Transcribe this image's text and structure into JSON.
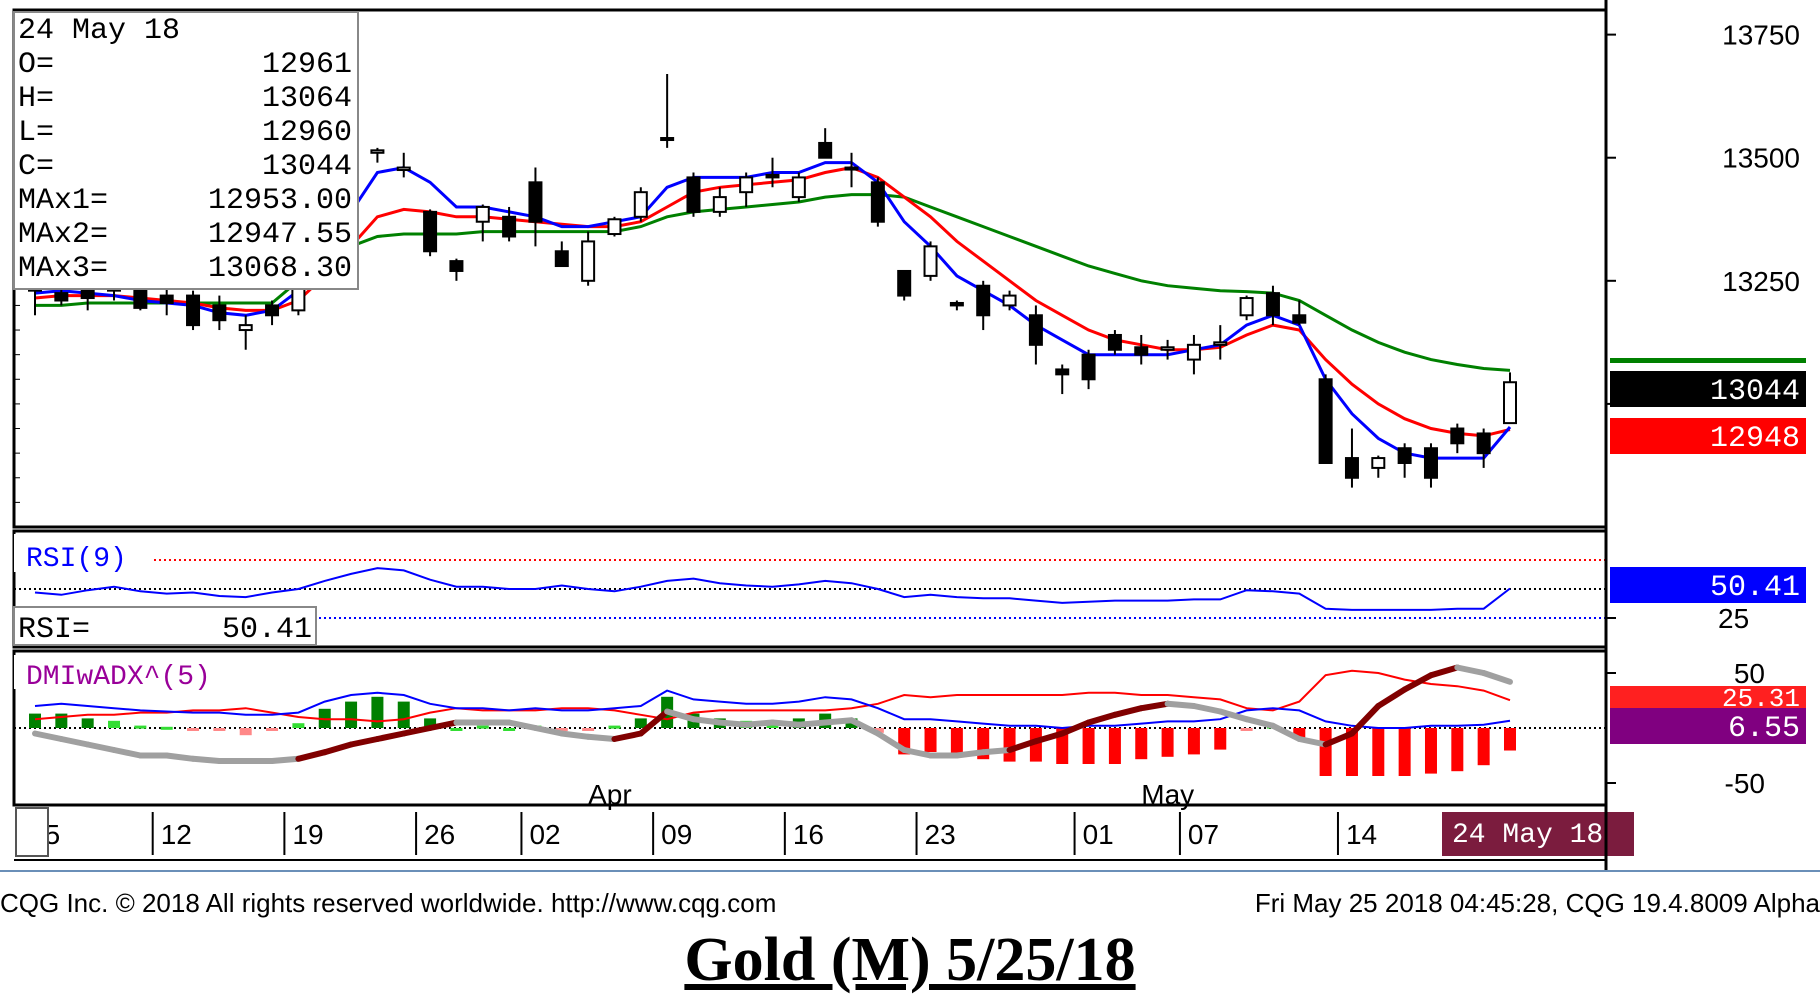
{
  "ohlc_panel": {
    "date": "24 May 18",
    "rows": [
      {
        "label": "O=",
        "value": "12961"
      },
      {
        "label": "H=",
        "value": "13064"
      },
      {
        "label": "L=",
        "value": "12960"
      },
      {
        "label": "C=",
        "value": "13044"
      },
      {
        "label": "MAx1=",
        "value": "12953.00"
      },
      {
        "label": "MAx2=",
        "value": "12947.55"
      },
      {
        "label": "MAx3=",
        "value": "13068.30"
      }
    ]
  },
  "rsi_panel": {
    "title": "RSI(9)",
    "readout_label": "RSI=",
    "readout_value": "50.41"
  },
  "dmi_panel": {
    "title": "DMIwADX^(5)"
  },
  "price_badges": [
    {
      "text": "13044",
      "bg": "#000000",
      "fg": "#ffffff"
    },
    {
      "text": "12948",
      "bg": "#ff0000",
      "fg": "#ffffff"
    }
  ],
  "rsi_badge": {
    "text": "50.41",
    "bg": "#0000ff",
    "fg": "#ffffff"
  },
  "dmi_badges": [
    {
      "text": "25.31",
      "bg": "#ff2020",
      "fg": "#ffffff"
    },
    {
      "text": "6.55",
      "bg": "#800080",
      "fg": "#ffffff"
    }
  ],
  "date_badge": {
    "text": "24 May 18",
    "bg": "#7b1c3e",
    "fg": "#ffffff"
  },
  "footer": {
    "left": "CQG Inc. © 2018 All rights reserved worldwide. http://www.cqg.com",
    "right": "Fri May 25 2018 04:45:28, CQG 19.4.8009 Alpha"
  },
  "caption": "Gold (M) 5/25/18",
  "colors": {
    "ma1": "#0000ff",
    "ma2": "#ff0000",
    "ma3": "#008000",
    "adx": "#a0a0a0",
    "adx_rising": "#800000",
    "adx_green": "#008000",
    "dmi_plus": "#0000ff",
    "dmi_minus": "#ff0000",
    "hist_pos": "#008000",
    "hist_pos_light": "#33dd33",
    "hist_neg": "#ff0000",
    "hist_neg_light": "#ff8888"
  },
  "chart_data": {
    "type": "candlestick",
    "price_axis": {
      "ticks": [
        13750,
        13500,
        13250
      ],
      "range": [
        12750,
        13800
      ]
    },
    "rsi_axis": {
      "ticks": [
        25
      ],
      "range": [
        0,
        100
      ],
      "levels": [
        75,
        50,
        25
      ]
    },
    "dmi_axis": {
      "ticks": [
        -50,
        50
      ],
      "range": [
        -70,
        70
      ]
    },
    "date_ticks": [
      "05",
      "12",
      "19",
      "26",
      "02",
      "09",
      "16",
      "23",
      "01",
      "07",
      "14"
    ],
    "date_tick_index": [
      0,
      5,
      10,
      15,
      19,
      24,
      29,
      34,
      40,
      44,
      50
    ],
    "month_labels": [
      {
        "text": "Apr",
        "index": 21
      },
      {
        "text": "May",
        "index": 42
      }
    ],
    "candles": [
      {
        "o": 13230,
        "h": 13260,
        "l": 13180,
        "c": 13235
      },
      {
        "o": 13225,
        "h": 13245,
        "l": 13200,
        "c": 13210
      },
      {
        "o": 13250,
        "h": 13270,
        "l": 13190,
        "c": 13215
      },
      {
        "o": 13230,
        "h": 13260,
        "l": 13210,
        "c": 13240
      },
      {
        "o": 13235,
        "h": 13255,
        "l": 13190,
        "c": 13195
      },
      {
        "o": 13220,
        "h": 13235,
        "l": 13180,
        "c": 13205
      },
      {
        "o": 13220,
        "h": 13230,
        "l": 13150,
        "c": 13160
      },
      {
        "o": 13200,
        "h": 13220,
        "l": 13150,
        "c": 13170
      },
      {
        "o": 13150,
        "h": 13180,
        "l": 13110,
        "c": 13160
      },
      {
        "o": 13200,
        "h": 13210,
        "l": 13160,
        "c": 13180
      },
      {
        "o": 13190,
        "h": 13300,
        "l": 13180,
        "c": 13290
      },
      {
        "o": 13295,
        "h": 13360,
        "l": 13290,
        "c": 13350
      },
      {
        "o": 13430,
        "h": 13475,
        "l": 13430,
        "c": 13470
      },
      {
        "o": 13510,
        "h": 13520,
        "l": 13490,
        "c": 13515
      },
      {
        "o": 13475,
        "h": 13510,
        "l": 13460,
        "c": 13480
      },
      {
        "o": 13390,
        "h": 13395,
        "l": 13300,
        "c": 13310
      },
      {
        "o": 13290,
        "h": 13295,
        "l": 13250,
        "c": 13270
      },
      {
        "o": 13370,
        "h": 13405,
        "l": 13330,
        "c": 13400
      },
      {
        "o": 13380,
        "h": 13400,
        "l": 13330,
        "c": 13340
      },
      {
        "o": 13450,
        "h": 13480,
        "l": 13320,
        "c": 13370
      },
      {
        "o": 13310,
        "h": 13330,
        "l": 13280,
        "c": 13280
      },
      {
        "o": 13250,
        "h": 13350,
        "l": 13240,
        "c": 13330
      },
      {
        "o": 13345,
        "h": 13380,
        "l": 13340,
        "c": 13375
      },
      {
        "o": 13380,
        "h": 13440,
        "l": 13370,
        "c": 13430
      },
      {
        "o": 13540,
        "h": 13670,
        "l": 13520,
        "c": 13540
      },
      {
        "o": 13460,
        "h": 13470,
        "l": 13380,
        "c": 13390
      },
      {
        "o": 13390,
        "h": 13440,
        "l": 13380,
        "c": 13420
      },
      {
        "o": 13430,
        "h": 13470,
        "l": 13400,
        "c": 13460
      },
      {
        "o": 13465,
        "h": 13500,
        "l": 13440,
        "c": 13460
      },
      {
        "o": 13420,
        "h": 13470,
        "l": 13410,
        "c": 13460
      },
      {
        "o": 13530,
        "h": 13560,
        "l": 13500,
        "c": 13500
      },
      {
        "o": 13480,
        "h": 13510,
        "l": 13440,
        "c": 13480
      },
      {
        "o": 13450,
        "h": 13460,
        "l": 13360,
        "c": 13370
      },
      {
        "o": 13270,
        "h": 13270,
        "l": 13210,
        "c": 13220
      },
      {
        "o": 13260,
        "h": 13330,
        "l": 13250,
        "c": 13320
      },
      {
        "o": 13205,
        "h": 13210,
        "l": 13190,
        "c": 13200
      },
      {
        "o": 13240,
        "h": 13250,
        "l": 13150,
        "c": 13180
      },
      {
        "o": 13200,
        "h": 13230,
        "l": 13190,
        "c": 13220
      },
      {
        "o": 13180,
        "h": 13200,
        "l": 13080,
        "c": 13120
      },
      {
        "o": 13070,
        "h": 13080,
        "l": 13020,
        "c": 13060
      },
      {
        "o": 13100,
        "h": 13110,
        "l": 13030,
        "c": 13050
      },
      {
        "o": 13140,
        "h": 13150,
        "l": 13100,
        "c": 13110
      },
      {
        "o": 13115,
        "h": 13140,
        "l": 13080,
        "c": 13100
      },
      {
        "o": 13110,
        "h": 13130,
        "l": 13090,
        "c": 13115
      },
      {
        "o": 13090,
        "h": 13140,
        "l": 13060,
        "c": 13120
      },
      {
        "o": 13120,
        "h": 13160,
        "l": 13090,
        "c": 13125
      },
      {
        "o": 13180,
        "h": 13220,
        "l": 13170,
        "c": 13215
      },
      {
        "o": 13225,
        "h": 13240,
        "l": 13160,
        "c": 13180
      },
      {
        "o": 13180,
        "h": 13210,
        "l": 13160,
        "c": 13165
      },
      {
        "o": 13050,
        "h": 13060,
        "l": 12880,
        "c": 12880
      },
      {
        "o": 12890,
        "h": 12950,
        "l": 12830,
        "c": 12850
      },
      {
        "o": 12870,
        "h": 12895,
        "l": 12850,
        "c": 12890
      },
      {
        "o": 12910,
        "h": 12920,
        "l": 12850,
        "c": 12880
      },
      {
        "o": 12910,
        "h": 12920,
        "l": 12830,
        "c": 12850
      },
      {
        "o": 12950,
        "h": 12960,
        "l": 12900,
        "c": 12920
      },
      {
        "o": 12940,
        "h": 12950,
        "l": 12870,
        "c": 12900
      },
      {
        "o": 12961,
        "h": 13064,
        "l": 12960,
        "c": 13044
      }
    ],
    "ma1": [
      13225,
      13230,
      13225,
      13220,
      13210,
      13205,
      13200,
      13185,
      13180,
      13190,
      13230,
      13300,
      13390,
      13470,
      13480,
      13450,
      13400,
      13400,
      13390,
      13380,
      13360,
      13360,
      13370,
      13380,
      13440,
      13460,
      13460,
      13460,
      13470,
      13470,
      13490,
      13490,
      13450,
      13370,
      13320,
      13260,
      13230,
      13200,
      13160,
      13130,
      13100,
      13100,
      13100,
      13100,
      13110,
      13120,
      13160,
      13180,
      13160,
      13050,
      12980,
      12930,
      12900,
      12890,
      12890,
      12890,
      12953
    ],
    "ma2": [
      13215,
      13220,
      13220,
      13220,
      13215,
      13210,
      13205,
      13195,
      13190,
      13190,
      13210,
      13260,
      13320,
      13380,
      13395,
      13390,
      13380,
      13380,
      13375,
      13370,
      13365,
      13360,
      13360,
      13370,
      13400,
      13430,
      13440,
      13445,
      13450,
      13455,
      13470,
      13480,
      13460,
      13420,
      13380,
      13330,
      13290,
      13250,
      13210,
      13180,
      13150,
      13130,
      13120,
      13110,
      13110,
      13115,
      13140,
      13160,
      13150,
      13090,
      13040,
      13000,
      12970,
      12950,
      12940,
      12935,
      12948
    ],
    "ma3": [
      13200,
      13200,
      13205,
      13205,
      13205,
      13205,
      13205,
      13205,
      13205,
      13205,
      13250,
      13300,
      13320,
      13340,
      13345,
      13345,
      13345,
      13350,
      13350,
      13350,
      13350,
      13350,
      13350,
      13360,
      13380,
      13390,
      13395,
      13400,
      13405,
      13410,
      13420,
      13425,
      13425,
      13420,
      13400,
      13380,
      13360,
      13340,
      13320,
      13300,
      13280,
      13265,
      13250,
      13240,
      13235,
      13230,
      13228,
      13225,
      13210,
      13180,
      13150,
      13125,
      13105,
      13090,
      13080,
      13072,
      13068
    ],
    "rsi": [
      47,
      45,
      49,
      52,
      48,
      46,
      47,
      44,
      43,
      47,
      50,
      57,
      63,
      68,
      66,
      58,
      52,
      52,
      50,
      50,
      53,
      50,
      48,
      52,
      57,
      59,
      55,
      53,
      52,
      54,
      57,
      55,
      50,
      43,
      45,
      43,
      42,
      42,
      40,
      38,
      39,
      40,
      40,
      40,
      41,
      41,
      49,
      48,
      46,
      33,
      32,
      32,
      32,
      32,
      33,
      33,
      50.41
    ],
    "dmi_plus": [
      20,
      22,
      20,
      18,
      16,
      15,
      14,
      14,
      12,
      12,
      14,
      24,
      30,
      32,
      30,
      22,
      18,
      18,
      16,
      18,
      16,
      16,
      18,
      20,
      34,
      26,
      24,
      22,
      22,
      24,
      28,
      26,
      18,
      8,
      8,
      6,
      4,
      2,
      2,
      0,
      2,
      2,
      4,
      6,
      6,
      8,
      16,
      18,
      16,
      6,
      2,
      0,
      0,
      2,
      2,
      3,
      6.55
    ],
    "dmi_minus": [
      8,
      10,
      12,
      12,
      14,
      14,
      16,
      16,
      18,
      14,
      10,
      8,
      8,
      6,
      8,
      14,
      18,
      16,
      16,
      16,
      18,
      18,
      16,
      12,
      8,
      14,
      16,
      16,
      16,
      16,
      16,
      18,
      22,
      30,
      28,
      30,
      30,
      30,
      30,
      30,
      32,
      32,
      30,
      30,
      28,
      26,
      18,
      16,
      24,
      48,
      52,
      50,
      44,
      40,
      38,
      34,
      25.31
    ],
    "adx": [
      -5,
      -10,
      -15,
      -20,
      -25,
      -25,
      -28,
      -30,
      -30,
      -30,
      -28,
      -22,
      -15,
      -10,
      -5,
      0,
      5,
      5,
      5,
      0,
      -5,
      -8,
      -10,
      -5,
      15,
      8,
      5,
      3,
      5,
      3,
      5,
      7,
      -5,
      -20,
      -25,
      -25,
      -22,
      -20,
      -12,
      -5,
      5,
      12,
      18,
      22,
      20,
      15,
      8,
      2,
      -10,
      -15,
      -5,
      20,
      35,
      48,
      55,
      50,
      42
    ]
  }
}
